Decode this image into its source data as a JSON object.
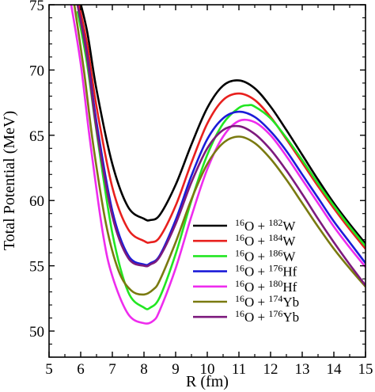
{
  "chart_data": {
    "type": "line",
    "title": "",
    "xlabel": "R (fm)",
    "ylabel": "Total Potential (MeV)",
    "xlim": [
      5,
      15
    ],
    "ylim": [
      48,
      75
    ],
    "x_ticks": [
      5,
      6,
      7,
      8,
      9,
      10,
      11,
      12,
      13,
      14,
      15
    ],
    "y_ticks": [
      50,
      55,
      60,
      65,
      70,
      75
    ],
    "grid": false,
    "legend_position": "right-center",
    "series": [
      {
        "name": "16O + 182W",
        "mass": "16",
        "elem": "O",
        "mass2": "182",
        "elem2": "W",
        "color": "#000000",
        "x": [
          5.9,
          6.2,
          6.5,
          7.0,
          7.5,
          8.0,
          8.2,
          8.5,
          9.0,
          9.5,
          10.0,
          10.5,
          11.0,
          11.5,
          12.0,
          12.5,
          13.0,
          13.5,
          14.0,
          14.5,
          15.0
        ],
        "y": [
          76.0,
          73.0,
          68.5,
          62.8,
          59.5,
          58.6,
          58.5,
          58.9,
          61.2,
          64.3,
          67.1,
          68.8,
          69.2,
          68.6,
          67.2,
          65.4,
          63.5,
          61.6,
          59.8,
          58.2,
          56.7
        ]
      },
      {
        "name": "16O + 184W",
        "mass": "16",
        "elem": "O",
        "mass2": "184",
        "elem2": "W",
        "color": "#e8201e",
        "x": [
          5.9,
          6.2,
          6.5,
          7.0,
          7.5,
          8.0,
          8.2,
          8.5,
          9.0,
          9.5,
          10.0,
          10.5,
          11.0,
          11.5,
          12.0,
          12.5,
          13.0,
          13.5,
          14.0,
          14.5,
          15.0
        ],
        "y": [
          75.5,
          72.0,
          67.2,
          61.0,
          57.8,
          56.9,
          56.8,
          57.2,
          59.6,
          62.9,
          65.9,
          67.7,
          68.2,
          67.7,
          66.4,
          64.7,
          62.9,
          61.1,
          59.4,
          57.8,
          56.3
        ]
      },
      {
        "name": "16O + 186W",
        "mass": "16",
        "elem": "O",
        "mass2": "186",
        "elem2": "W",
        "color": "#22e622",
        "x": [
          5.9,
          6.2,
          6.5,
          7.0,
          7.5,
          8.0,
          8.2,
          8.5,
          9.0,
          9.5,
          10.0,
          10.5,
          11.0,
          11.3,
          11.5,
          12.0,
          12.5,
          13.0,
          13.5,
          14.0,
          14.5,
          15.0
        ],
        "y": [
          74.5,
          70.5,
          65.3,
          57.5,
          53.0,
          51.8,
          51.8,
          52.6,
          55.9,
          60.0,
          63.5,
          65.9,
          67.1,
          67.3,
          67.2,
          66.3,
          64.8,
          63.1,
          61.3,
          59.6,
          58.0,
          56.5
        ]
      },
      {
        "name": "16O + 176Hf",
        "mass": "16",
        "elem": "O",
        "mass2": "176",
        "elem2": "Hf",
        "color": "#1b1bd8",
        "x": [
          5.9,
          6.2,
          6.5,
          7.0,
          7.5,
          8.0,
          8.2,
          8.5,
          9.0,
          9.5,
          10.0,
          10.5,
          11.0,
          11.5,
          12.0,
          12.5,
          13.0,
          13.5,
          14.0,
          14.5,
          15.0
        ],
        "y": [
          75.0,
          71.2,
          66.0,
          59.2,
          55.8,
          55.1,
          55.2,
          55.8,
          58.5,
          61.9,
          64.7,
          66.3,
          66.8,
          66.4,
          65.3,
          63.8,
          62.0,
          60.2,
          58.4,
          56.8,
          55.2
        ]
      },
      {
        "name": "16O + 180Hf",
        "mass": "16",
        "elem": "O",
        "mass2": "180",
        "elem2": "Hf",
        "color": "#ee2cee",
        "x": [
          5.7,
          6.0,
          6.3,
          6.7,
          7.0,
          7.5,
          8.0,
          8.3,
          8.5,
          9.0,
          9.5,
          10.0,
          10.5,
          11.0,
          11.5,
          12.0,
          12.5,
          13.0,
          13.5,
          14.0,
          14.5,
          15.0
        ],
        "y": [
          75.0,
          70.5,
          64.5,
          57.5,
          54.2,
          51.3,
          50.6,
          50.8,
          51.6,
          54.8,
          58.8,
          62.4,
          64.9,
          66.1,
          66.0,
          65.0,
          63.4,
          61.6,
          59.8,
          58.0,
          56.4,
          54.9
        ]
      },
      {
        "name": "16O + 174Yb",
        "mass": "16",
        "elem": "O",
        "mass2": "174",
        "elem2": "Yb",
        "color": "#7a7a10",
        "x": [
          5.8,
          6.1,
          6.4,
          6.8,
          7.2,
          7.6,
          8.0,
          8.3,
          8.5,
          9.0,
          9.5,
          10.0,
          10.5,
          11.0,
          11.5,
          12.0,
          12.5,
          13.0,
          13.5,
          14.0,
          14.5,
          15.0
        ],
        "y": [
          75.0,
          70.0,
          64.2,
          58.2,
          54.6,
          53.1,
          52.8,
          53.2,
          53.9,
          56.8,
          60.1,
          62.8,
          64.4,
          64.9,
          64.4,
          63.2,
          61.6,
          59.8,
          58.0,
          56.3,
          54.8,
          53.4
        ]
      },
      {
        "name": "16O + 176Yb",
        "mass": "16",
        "elem": "O",
        "mass2": "176",
        "elem2": "Yb",
        "color": "#7d1a7d",
        "x": [
          5.9,
          6.2,
          6.5,
          7.0,
          7.5,
          8.0,
          8.2,
          8.5,
          9.0,
          9.5,
          10.0,
          10.5,
          11.0,
          11.5,
          12.0,
          12.5,
          13.0,
          13.5,
          14.0,
          14.5,
          15.0
        ],
        "y": [
          75.0,
          71.0,
          65.5,
          58.8,
          55.6,
          55.0,
          55.1,
          55.7,
          58.2,
          61.4,
          64.0,
          65.4,
          65.7,
          65.1,
          63.9,
          62.3,
          60.5,
          58.6,
          56.8,
          55.1,
          53.5
        ]
      }
    ]
  }
}
